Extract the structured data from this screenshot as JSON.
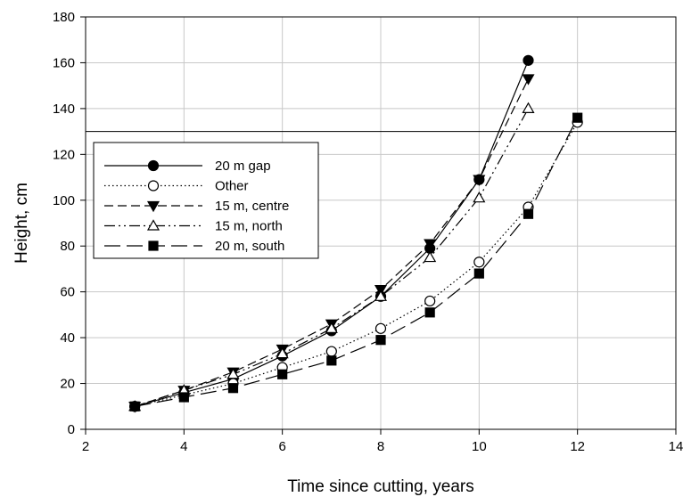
{
  "chart_data": {
    "type": "line",
    "xlabel": "Time since cutting, years",
    "ylabel": "Height, cm",
    "xlim": [
      2,
      14
    ],
    "ylim": [
      0,
      180
    ],
    "xticks": [
      2,
      4,
      6,
      8,
      10,
      12,
      14
    ],
    "yticks": [
      0,
      20,
      40,
      60,
      80,
      100,
      120,
      140,
      160,
      180
    ],
    "grid": true,
    "legend_position": "upper-left",
    "reference_line": {
      "y": 130
    },
    "series": [
      {
        "name": "20 m gap",
        "marker": "circle-filled",
        "linestyle": "solid",
        "x": [
          3,
          4,
          5,
          6,
          7,
          8,
          9,
          10,
          11
        ],
        "y": [
          10,
          16,
          22,
          32,
          43,
          58,
          79,
          109,
          161
        ]
      },
      {
        "name": "Other",
        "marker": "circle-open",
        "linestyle": "dotted",
        "x": [
          3,
          4,
          5,
          6,
          7,
          8,
          9,
          10,
          11,
          12
        ],
        "y": [
          10,
          15,
          20,
          27,
          34,
          44,
          56,
          73,
          97,
          134
        ]
      },
      {
        "name": "15 m, centre",
        "marker": "triangle-down-filled",
        "linestyle": "dashed",
        "x": [
          3,
          4,
          5,
          6,
          7,
          8,
          9,
          10,
          11
        ],
        "y": [
          10,
          17,
          25,
          35,
          46,
          61,
          81,
          109,
          153
        ]
      },
      {
        "name": "15 m, north",
        "marker": "triangle-up-open",
        "linestyle": "dashdotdot",
        "x": [
          3,
          4,
          5,
          6,
          7,
          8,
          9,
          10,
          11
        ],
        "y": [
          10,
          17,
          24,
          33,
          44,
          58,
          75,
          101,
          140
        ]
      },
      {
        "name": "20 m, south",
        "marker": "square-filled",
        "linestyle": "longdash",
        "x": [
          3,
          4,
          5,
          6,
          7,
          8,
          9,
          10,
          11,
          12
        ],
        "y": [
          10,
          14,
          18,
          24,
          30,
          39,
          51,
          68,
          94,
          136
        ]
      }
    ]
  }
}
